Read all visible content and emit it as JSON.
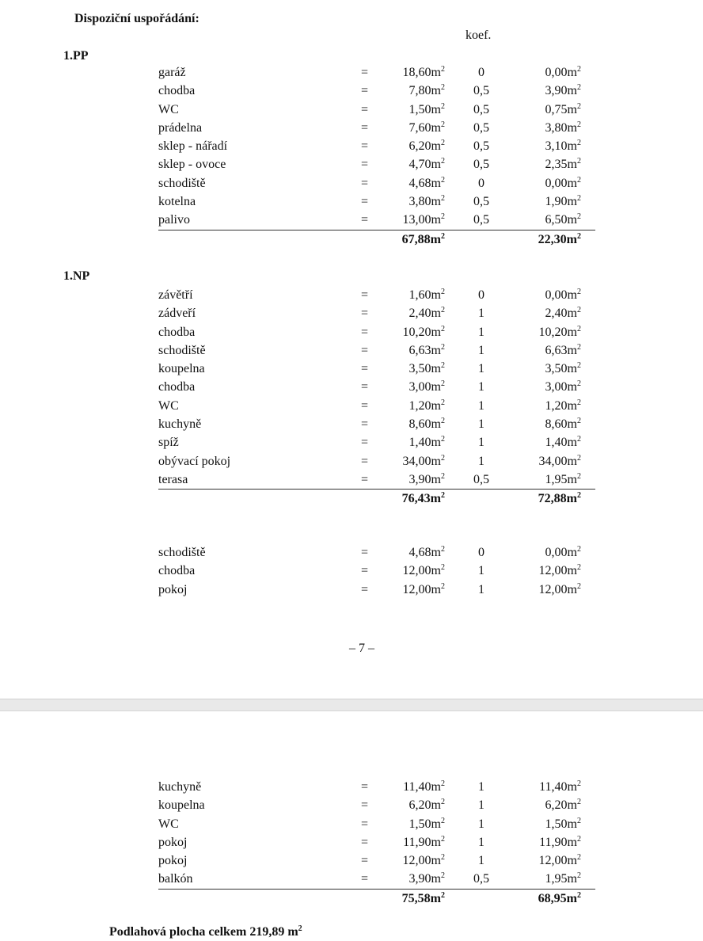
{
  "heading": "Dispoziční uspořádání:",
  "koef_label": "koef.",
  "unit": "m",
  "unit_exp": "2",
  "eq": "=",
  "sections": [
    {
      "label": "1.PP",
      "rows": [
        {
          "name": "garáž",
          "area": "18,60",
          "k": "0",
          "res": "0,00"
        },
        {
          "name": "chodba",
          "area": "7,80",
          "k": "0,5",
          "res": "3,90"
        },
        {
          "name": "WC",
          "area": "1,50",
          "k": "0,5",
          "res": "0,75"
        },
        {
          "name": "prádelna",
          "area": "7,60",
          "k": "0,5",
          "res": "3,80"
        },
        {
          "name": "sklep - nářadí",
          "area": "6,20",
          "k": "0,5",
          "res": "3,10"
        },
        {
          "name": "sklep - ovoce",
          "area": "4,70",
          "k": "0,5",
          "res": "2,35"
        },
        {
          "name": "schodiště",
          "area": "4,68",
          "k": "0",
          "res": "0,00"
        },
        {
          "name": "kotelna",
          "area": "3,80",
          "k": "0,5",
          "res": "1,90"
        },
        {
          "name": "palivo",
          "area": "13,00",
          "k": "0,5",
          "res": "6,50"
        }
      ],
      "total_area": "67,88",
      "total_res": "22,30"
    },
    {
      "label": "1.NP",
      "rows": [
        {
          "name": "závětří",
          "area": "1,60",
          "k": "0",
          "res": "0,00"
        },
        {
          "name": "zádveří",
          "area": "2,40",
          "k": "1",
          "res": "2,40"
        },
        {
          "name": "chodba",
          "area": "10,20",
          "k": "1",
          "res": "10,20"
        },
        {
          "name": "schodiště",
          "area": "6,63",
          "k": "1",
          "res": "6,63"
        },
        {
          "name": "koupelna",
          "area": "3,50",
          "k": "1",
          "res": "3,50"
        },
        {
          "name": "chodba",
          "area": "3,00",
          "k": "1",
          "res": "3,00"
        },
        {
          "name": "WC",
          "area": "1,20",
          "k": "1",
          "res": "1,20"
        },
        {
          "name": "kuchyně",
          "area": "8,60",
          "k": "1",
          "res": "8,60"
        },
        {
          "name": "spíž",
          "area": "1,40",
          "k": "1",
          "res": "1,40"
        },
        {
          "name": "obývací pokoj",
          "area": "34,00",
          "k": "1",
          "res": "34,00"
        },
        {
          "name": "terasa",
          "area": "3,90",
          "k": "0,5",
          "res": "1,95"
        }
      ],
      "total_area": "76,43",
      "total_res": "72,88"
    },
    {
      "label": "",
      "rows": [
        {
          "name": "schodiště",
          "area": "4,68",
          "k": "0",
          "res": "0,00"
        },
        {
          "name": "chodba",
          "area": "12,00",
          "k": "1",
          "res": "12,00"
        },
        {
          "name": "pokoj",
          "area": "12,00",
          "k": "1",
          "res": "12,00"
        }
      ]
    },
    {
      "label": "",
      "rows": [
        {
          "name": "kuchyně",
          "area": "11,40",
          "k": "1",
          "res": "11,40"
        },
        {
          "name": "koupelna",
          "area": "6,20",
          "k": "1",
          "res": "6,20"
        },
        {
          "name": "WC",
          "area": "1,50",
          "k": "1",
          "res": "1,50"
        },
        {
          "name": "pokoj",
          "area": "11,90",
          "k": "1",
          "res": "11,90"
        },
        {
          "name": "pokoj",
          "area": "12,00",
          "k": "1",
          "res": "12,00"
        },
        {
          "name": "balkón",
          "area": "3,90",
          "k": "0,5",
          "res": "1,95"
        }
      ],
      "total_area": "75,58",
      "total_res": "68,95"
    }
  ],
  "page_number": "– 7 –",
  "summary": "Podlahová plocha celkem 219,89 m"
}
